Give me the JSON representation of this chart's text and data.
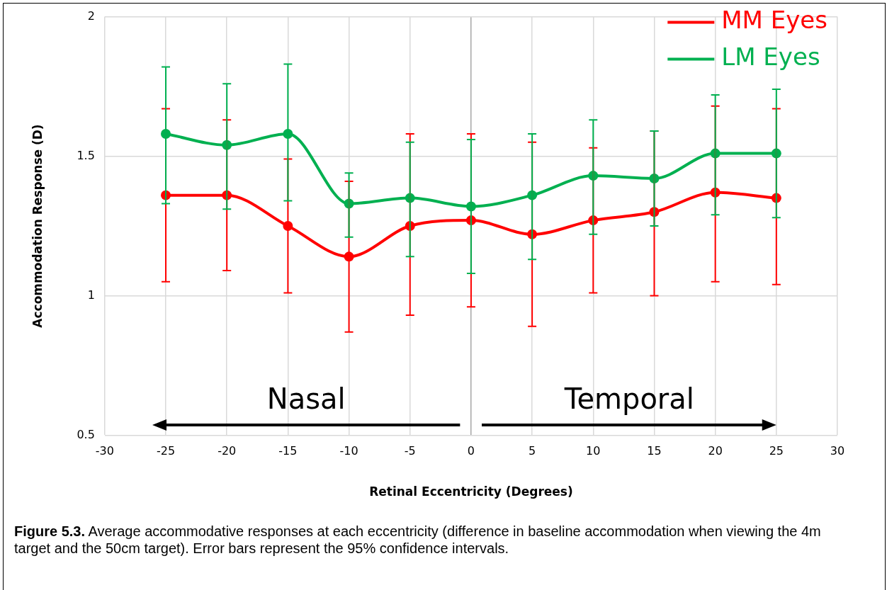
{
  "chart_data": {
    "type": "line",
    "xlabel": "Retinal Eccentricity (Degrees)",
    "ylabel": "Accommodation Response (D)",
    "x": [
      -25,
      -20,
      -15,
      -10,
      -5,
      0,
      5,
      10,
      15,
      20,
      25
    ],
    "series": [
      {
        "name": "MM Eyes",
        "color": "#ff0000",
        "values": [
          1.36,
          1.36,
          1.25,
          1.14,
          1.25,
          1.27,
          1.22,
          1.27,
          1.3,
          1.37,
          1.35
        ],
        "errors": [
          [
            1.05,
            1.67
          ],
          [
            1.09,
            1.63
          ],
          [
            1.01,
            1.49
          ],
          [
            0.87,
            1.41
          ],
          [
            0.93,
            1.58
          ],
          [
            0.96,
            1.58
          ],
          [
            0.89,
            1.55
          ],
          [
            1.01,
            1.53
          ],
          [
            1.0,
            1.59
          ],
          [
            1.05,
            1.68
          ],
          [
            1.04,
            1.67
          ]
        ]
      },
      {
        "name": "LM Eyes",
        "color": "#00b050",
        "values": [
          1.58,
          1.54,
          1.58,
          1.33,
          1.35,
          1.32,
          1.36,
          1.43,
          1.42,
          1.51,
          1.51
        ],
        "errors": [
          [
            1.33,
            1.82
          ],
          [
            1.31,
            1.76
          ],
          [
            1.34,
            1.83
          ],
          [
            1.21,
            1.44
          ],
          [
            1.14,
            1.55
          ],
          [
            1.08,
            1.56
          ],
          [
            1.13,
            1.58
          ],
          [
            1.22,
            1.63
          ],
          [
            1.25,
            1.59
          ],
          [
            1.29,
            1.72
          ],
          [
            1.28,
            1.74
          ]
        ]
      }
    ],
    "xlim": [
      -30,
      30
    ],
    "xticks": [
      -30,
      -25,
      -20,
      -15,
      -10,
      -5,
      0,
      5,
      10,
      15,
      20,
      25,
      30
    ],
    "ylim": [
      0.5,
      2
    ],
    "yticks": [
      0.5,
      1,
      1.5,
      2
    ],
    "grid": true,
    "legend": "top right",
    "marker": "circle",
    "line_style": "solid",
    "annotations": [
      "Nasal",
      "Temporal",
      "Figure 5.3. Average accommodative responses at each eccentricity (difference in baseline accommodation when viewing the 4m target and the 50cm target). Error bars represent the 95% confidence intervals."
    ]
  }
}
